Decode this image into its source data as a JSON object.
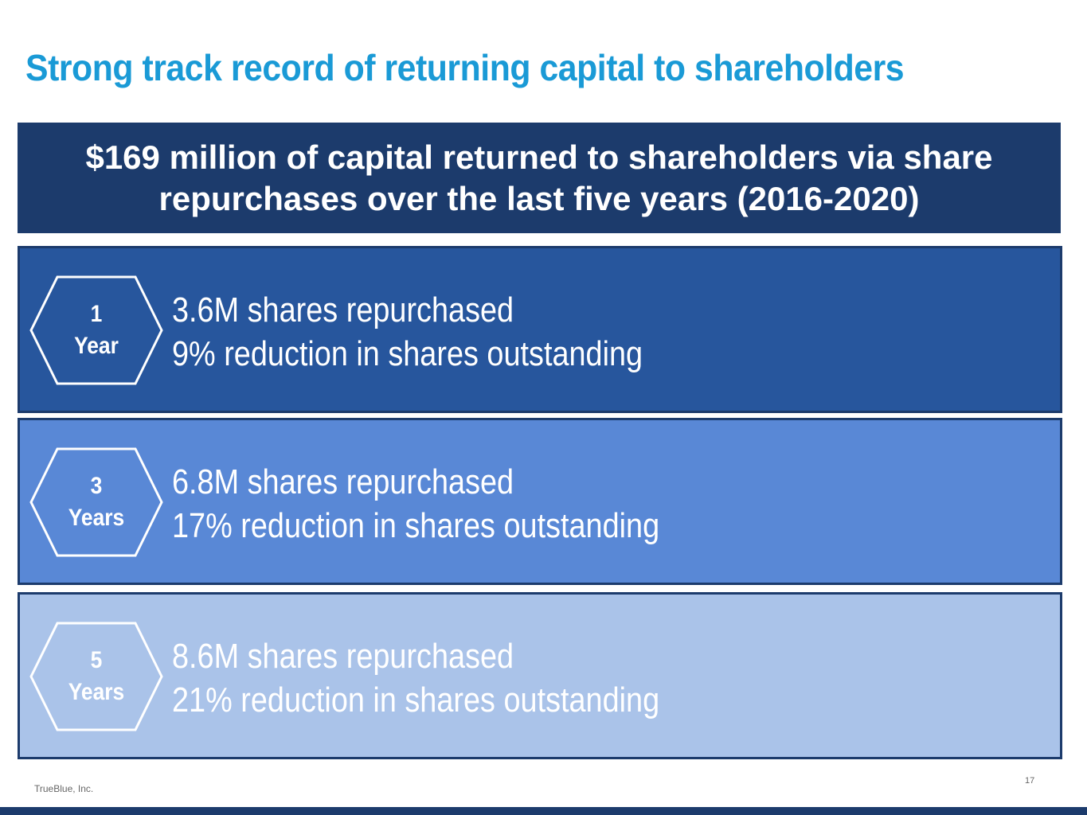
{
  "slide": {
    "title": "Strong track record of returning capital to shareholders",
    "banner": {
      "line1": "$169 million of capital returned to shareholders via share",
      "line2": "repurchases over the last five years (2016-2020)"
    },
    "rows": [
      {
        "period_number": "1",
        "period_unit": "Year",
        "shares_line": "3.6M shares repurchased",
        "reduction_line": "9% reduction in shares outstanding",
        "color": "#27569d"
      },
      {
        "period_number": "3",
        "period_unit": "Years",
        "shares_line": "6.8M shares repurchased",
        "reduction_line": "17% reduction in shares outstanding",
        "color": "#5988d6"
      },
      {
        "period_number": "5",
        "period_unit": "Years",
        "shares_line": "8.6M shares repurchased",
        "reduction_line": "21% reduction in shares outstanding",
        "color": "#aac3e9"
      }
    ],
    "footer": {
      "company": "TrueBlue, Inc.",
      "page_number": "17"
    }
  },
  "colors": {
    "title": "#1a9ad6",
    "navy": "#1c3b6c"
  }
}
